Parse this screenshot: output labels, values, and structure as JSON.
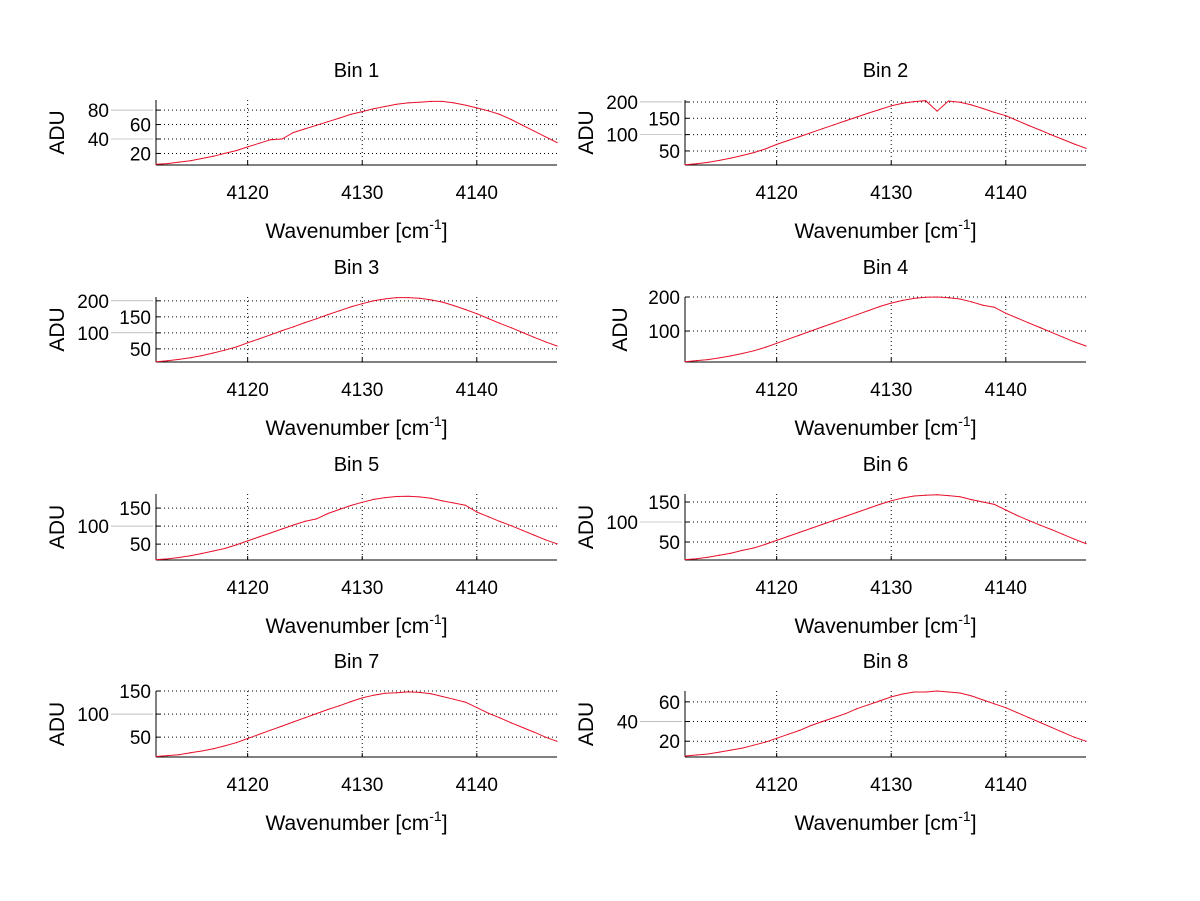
{
  "chart_data": [
    {
      "type": "line",
      "title": "Bin 1",
      "xlabel": "Wavenumber [cm",
      "xlabel_sup": "-1",
      "xlabel_end": "]",
      "ylabel": "ADU",
      "xlim": [
        4112,
        4147
      ],
      "ylim": [
        4,
        94
      ],
      "xticks": [
        4120,
        4130,
        4140
      ],
      "yticks": [
        20,
        40,
        60,
        80
      ],
      "grid": true,
      "color": "#e8102a",
      "x_start": 4112,
      "x_step": 1,
      "values": [
        5,
        6,
        8,
        10,
        13,
        16,
        20,
        24,
        29,
        34,
        39,
        40,
        49,
        54,
        59,
        64,
        69,
        74,
        78,
        82,
        85,
        88,
        90,
        91,
        92,
        92,
        90,
        87,
        83,
        79,
        74,
        67,
        59,
        51,
        43,
        35
      ]
    },
    {
      "type": "line",
      "title": "Bin 2",
      "xlabel": "Wavenumber [cm",
      "xlabel_sup": "-1",
      "xlabel_end": "]",
      "ylabel": "ADU",
      "xlim": [
        4112,
        4147
      ],
      "ylim": [
        7,
        206
      ],
      "xticks": [
        4120,
        4130,
        4140
      ],
      "yticks": [
        50,
        100,
        150,
        200
      ],
      "grid": true,
      "color": "#e8102a",
      "x_start": 4112,
      "x_step": 1,
      "values": [
        8,
        11,
        15,
        21,
        28,
        36,
        45,
        56,
        70,
        82,
        94,
        106,
        118,
        130,
        142,
        154,
        166,
        177,
        188,
        196,
        201,
        204,
        172,
        203,
        199,
        191,
        180,
        168,
        158,
        143,
        128,
        114,
        99,
        85,
        71,
        58
      ]
    },
    {
      "type": "line",
      "title": "Bin 3",
      "xlabel": "Wavenumber [cm",
      "xlabel_sup": "-1",
      "xlabel_end": "]",
      "ylabel": "ADU",
      "xlim": [
        4112,
        4147
      ],
      "ylim": [
        9,
        212
      ],
      "xticks": [
        4120,
        4130,
        4140
      ],
      "yticks": [
        50,
        100,
        150,
        200
      ],
      "grid": true,
      "color": "#e8102a",
      "x_start": 4112,
      "x_step": 1,
      "values": [
        10,
        13,
        17,
        22,
        29,
        37,
        46,
        56,
        69,
        81,
        94,
        107,
        119,
        132,
        144,
        157,
        169,
        181,
        191,
        200,
        206,
        210,
        210,
        208,
        203,
        196,
        185,
        173,
        160,
        145,
        130,
        116,
        101,
        86,
        72,
        59
      ]
    },
    {
      "type": "line",
      "title": "Bin 4",
      "xlabel": "Wavenumber [cm",
      "xlabel_sup": "-1",
      "xlabel_end": "]",
      "ylabel": "ADU",
      "xlim": [
        4112,
        4147
      ],
      "ylim": [
        9,
        200
      ],
      "xticks": [
        4120,
        4130,
        4140
      ],
      "yticks": [
        100,
        200
      ],
      "grid": true,
      "color": "#e8102a",
      "x_start": 4112,
      "x_step": 1,
      "values": [
        10,
        13,
        16,
        21,
        27,
        34,
        42,
        52,
        64,
        76,
        88,
        100,
        112,
        124,
        136,
        148,
        160,
        172,
        182,
        190,
        196,
        199,
        200,
        198,
        194,
        186,
        176,
        170,
        152,
        138,
        124,
        110,
        96,
        82,
        68,
        56
      ]
    },
    {
      "type": "line",
      "title": "Bin 5",
      "xlabel": "Wavenumber [cm",
      "xlabel_sup": "-1",
      "xlabel_end": "]",
      "ylabel": "ADU",
      "xlim": [
        4112,
        4147
      ],
      "ylim": [
        6,
        189
      ],
      "xticks": [
        4120,
        4130,
        4140
      ],
      "yticks": [
        50,
        100,
        150
      ],
      "grid": true,
      "color": "#e8102a",
      "x_start": 4112,
      "x_step": 1,
      "values": [
        7,
        9,
        13,
        18,
        24,
        31,
        38,
        48,
        59,
        70,
        81,
        92,
        103,
        113,
        120,
        135,
        146,
        157,
        166,
        174,
        179,
        182,
        183,
        181,
        177,
        170,
        164,
        158,
        139,
        126,
        113,
        101,
        88,
        75,
        62,
        51
      ]
    },
    {
      "type": "line",
      "title": "Bin 6",
      "xlabel": "Wavenumber [cm",
      "xlabel_sup": "-1",
      "xlabel_end": "]",
      "ylabel": "ADU",
      "xlim": [
        4112,
        4147
      ],
      "ylim": [
        5,
        170
      ],
      "xticks": [
        4120,
        4130,
        4140
      ],
      "yticks": [
        50,
        100,
        150
      ],
      "grid": true,
      "color": "#e8102a",
      "x_start": 4112,
      "x_step": 1,
      "values": [
        6,
        8,
        12,
        17,
        22,
        29,
        35,
        44,
        54,
        64,
        74,
        84,
        94,
        104,
        114,
        124,
        134,
        144,
        153,
        160,
        165,
        167,
        168,
        166,
        163,
        156,
        150,
        144,
        130,
        116,
        104,
        92,
        81,
        69,
        57,
        46
      ]
    },
    {
      "type": "line",
      "title": "Bin 7",
      "xlabel": "Wavenumber [cm",
      "xlabel_sup": "-1",
      "xlabel_end": "]",
      "ylabel": "ADU",
      "xlim": [
        4112,
        4147
      ],
      "ylim": [
        7,
        150
      ],
      "xticks": [
        4120,
        4130,
        4140
      ],
      "yticks": [
        50,
        100,
        150
      ],
      "grid": true,
      "color": "#e8102a",
      "x_start": 4112,
      "x_step": 1,
      "values": [
        8,
        10,
        12,
        16,
        20,
        25,
        31,
        38,
        47,
        56,
        65,
        74,
        83,
        92,
        101,
        110,
        118,
        127,
        135,
        141,
        145,
        146,
        148,
        147,
        144,
        138,
        132,
        126,
        114,
        102,
        92,
        81,
        71,
        61,
        50,
        41
      ]
    },
    {
      "type": "line",
      "title": "Bin 8",
      "xlabel": "Wavenumber [cm",
      "xlabel_sup": "-1",
      "xlabel_end": "]",
      "ylabel": "ADU",
      "xlim": [
        4112,
        4147
      ],
      "ylim": [
        4,
        71
      ],
      "xticks": [
        4120,
        4130,
        4140
      ],
      "yticks": [
        20,
        40,
        60
      ],
      "grid": true,
      "color": "#e8102a",
      "x_start": 4112,
      "x_step": 1,
      "values": [
        5,
        6,
        7,
        9,
        11,
        13,
        16,
        19,
        23,
        27,
        31,
        36,
        40,
        44,
        48,
        53,
        57,
        61,
        65,
        68,
        70,
        70,
        71,
        70,
        69,
        66,
        62,
        58,
        54,
        49,
        44,
        39,
        34,
        29,
        24,
        20
      ]
    }
  ]
}
